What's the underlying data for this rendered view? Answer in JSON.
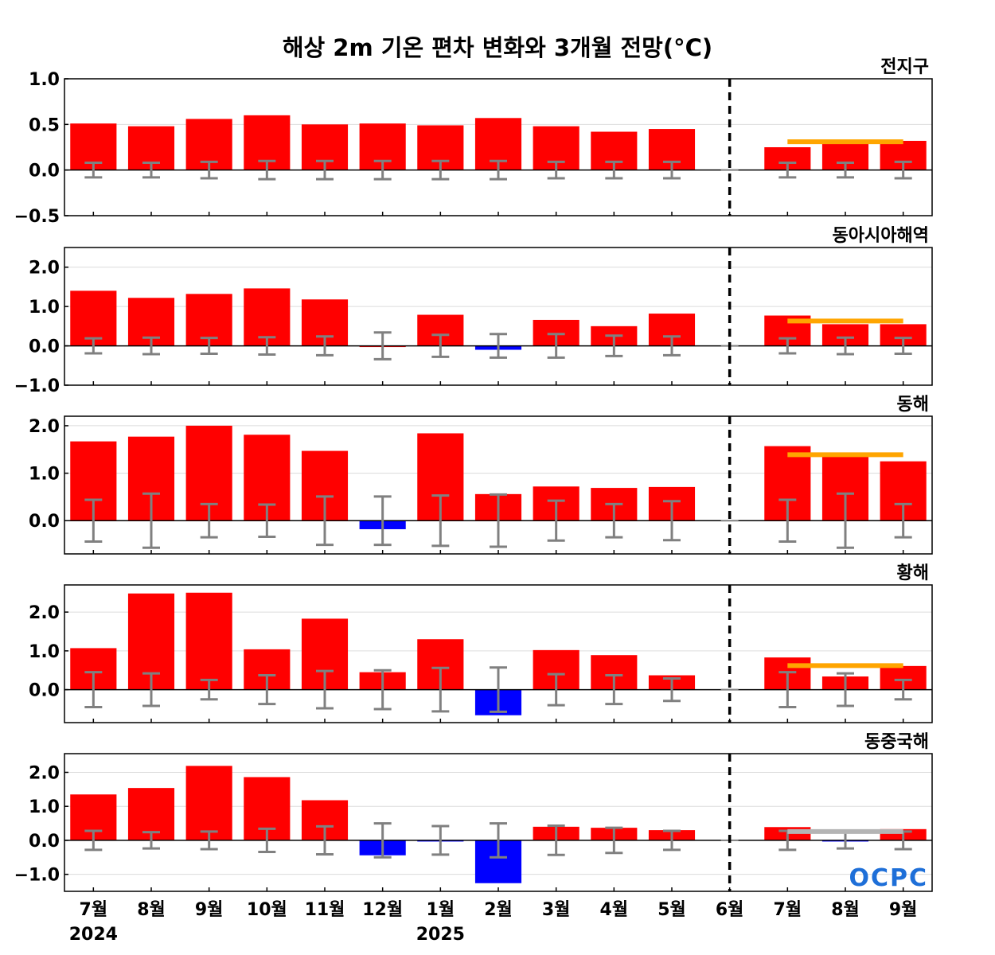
{
  "chart_data": {
    "type": "bar",
    "title": "해상 2m 기온 편차 변화와 3개월 전망(°C)",
    "categories": [
      "7월",
      "8월",
      "9월",
      "10월",
      "11월",
      "12월",
      "1월",
      "2월",
      "3월",
      "4월",
      "5월",
      "6월",
      "7월",
      "8월",
      "9월"
    ],
    "year_labels": [
      {
        "index": 0,
        "label": "2024"
      },
      {
        "index": 6,
        "label": "2025"
      }
    ],
    "forecast_separator_after": "6월",
    "colors": {
      "positive": "#ff0000",
      "negative": "#0000ff",
      "errorbar": "#808080",
      "outlook": "#ffa500",
      "outlook_neutral": "#b4b4b4",
      "separator": "#000000"
    },
    "logo": "OCPC",
    "panels": [
      {
        "name": "전지구",
        "ylim": [
          -0.5,
          1.0
        ],
        "yticks": [
          -0.5,
          0.0,
          0.5,
          1.0
        ],
        "ytick_labels": [
          "−0.5",
          "0.0",
          "0.5",
          "1.0"
        ],
        "values": [
          0.51,
          0.48,
          0.56,
          0.6,
          0.5,
          0.51,
          0.49,
          0.57,
          0.48,
          0.42,
          0.45,
          null,
          0.25,
          0.33,
          0.32
        ],
        "error": [
          0.08,
          0.08,
          0.09,
          0.1,
          0.1,
          0.1,
          0.1,
          0.1,
          0.09,
          0.09,
          0.09,
          0.01,
          0.08,
          0.08,
          0.09
        ],
        "outlook": {
          "value": 0.31,
          "from": 12,
          "to": 14,
          "color": "orange"
        }
      },
      {
        "name": "동아시아해역",
        "ylim": [
          -1.0,
          2.5
        ],
        "yticks": [
          -1.0,
          0.0,
          1.0,
          2.0
        ],
        "ytick_labels": [
          "−1.0",
          "0.0",
          "1.0",
          "2.0"
        ],
        "values": [
          1.4,
          1.22,
          1.32,
          1.46,
          1.18,
          0.0,
          0.79,
          -0.1,
          0.66,
          0.5,
          0.82,
          null,
          0.77,
          0.55,
          0.55
        ],
        "error": [
          0.19,
          0.21,
          0.2,
          0.22,
          0.24,
          0.34,
          0.28,
          0.3,
          0.3,
          0.26,
          0.24,
          0.02,
          0.19,
          0.21,
          0.2
        ],
        "outlook": {
          "value": 0.63,
          "from": 12,
          "to": 14,
          "color": "orange"
        }
      },
      {
        "name": "동해",
        "ylim": [
          -0.7,
          2.2
        ],
        "yticks": [
          0.0,
          1.0,
          2.0
        ],
        "ytick_labels": [
          "0.0",
          "1.0",
          "2.0"
        ],
        "values": [
          1.67,
          1.77,
          2.0,
          1.81,
          1.47,
          -0.18,
          1.84,
          0.56,
          0.72,
          0.69,
          0.71,
          null,
          1.57,
          1.38,
          1.25
        ],
        "error": [
          0.44,
          0.57,
          0.35,
          0.34,
          0.51,
          0.51,
          0.53,
          0.55,
          0.42,
          0.35,
          0.41,
          0.02,
          0.44,
          0.57,
          0.35
        ],
        "outlook": {
          "value": 1.39,
          "from": 12,
          "to": 14,
          "color": "orange"
        }
      },
      {
        "name": "황해",
        "ylim": [
          -0.85,
          2.7
        ],
        "yticks": [
          0.0,
          1.0,
          2.0
        ],
        "ytick_labels": [
          "0.0",
          "1.0",
          "2.0"
        ],
        "values": [
          1.07,
          2.48,
          2.5,
          1.04,
          1.83,
          0.45,
          1.3,
          -0.66,
          1.02,
          0.89,
          0.37,
          null,
          0.83,
          0.34,
          0.61
        ],
        "error": [
          0.45,
          0.42,
          0.25,
          0.37,
          0.48,
          0.5,
          0.56,
          0.57,
          0.4,
          0.37,
          0.29,
          0.02,
          0.45,
          0.42,
          0.25
        ],
        "outlook": {
          "value": 0.62,
          "from": 12,
          "to": 14,
          "color": "orange"
        }
      },
      {
        "name": "동중국해",
        "ylim": [
          -1.5,
          2.55
        ],
        "yticks": [
          -1.0,
          0.0,
          1.0,
          2.0
        ],
        "ytick_labels": [
          "−1.0",
          "0.0",
          "1.0",
          "2.0"
        ],
        "values": [
          1.35,
          1.54,
          2.19,
          1.86,
          1.18,
          -0.44,
          -0.02,
          -1.26,
          0.4,
          0.37,
          0.3,
          null,
          0.39,
          -0.02,
          0.33
        ],
        "error": [
          0.28,
          0.24,
          0.26,
          0.34,
          0.41,
          0.5,
          0.42,
          0.5,
          0.43,
          0.37,
          0.28,
          0.02,
          0.28,
          0.24,
          0.26
        ],
        "outlook": {
          "value": 0.26,
          "from": 12,
          "to": 14,
          "color": "gray"
        }
      }
    ]
  }
}
